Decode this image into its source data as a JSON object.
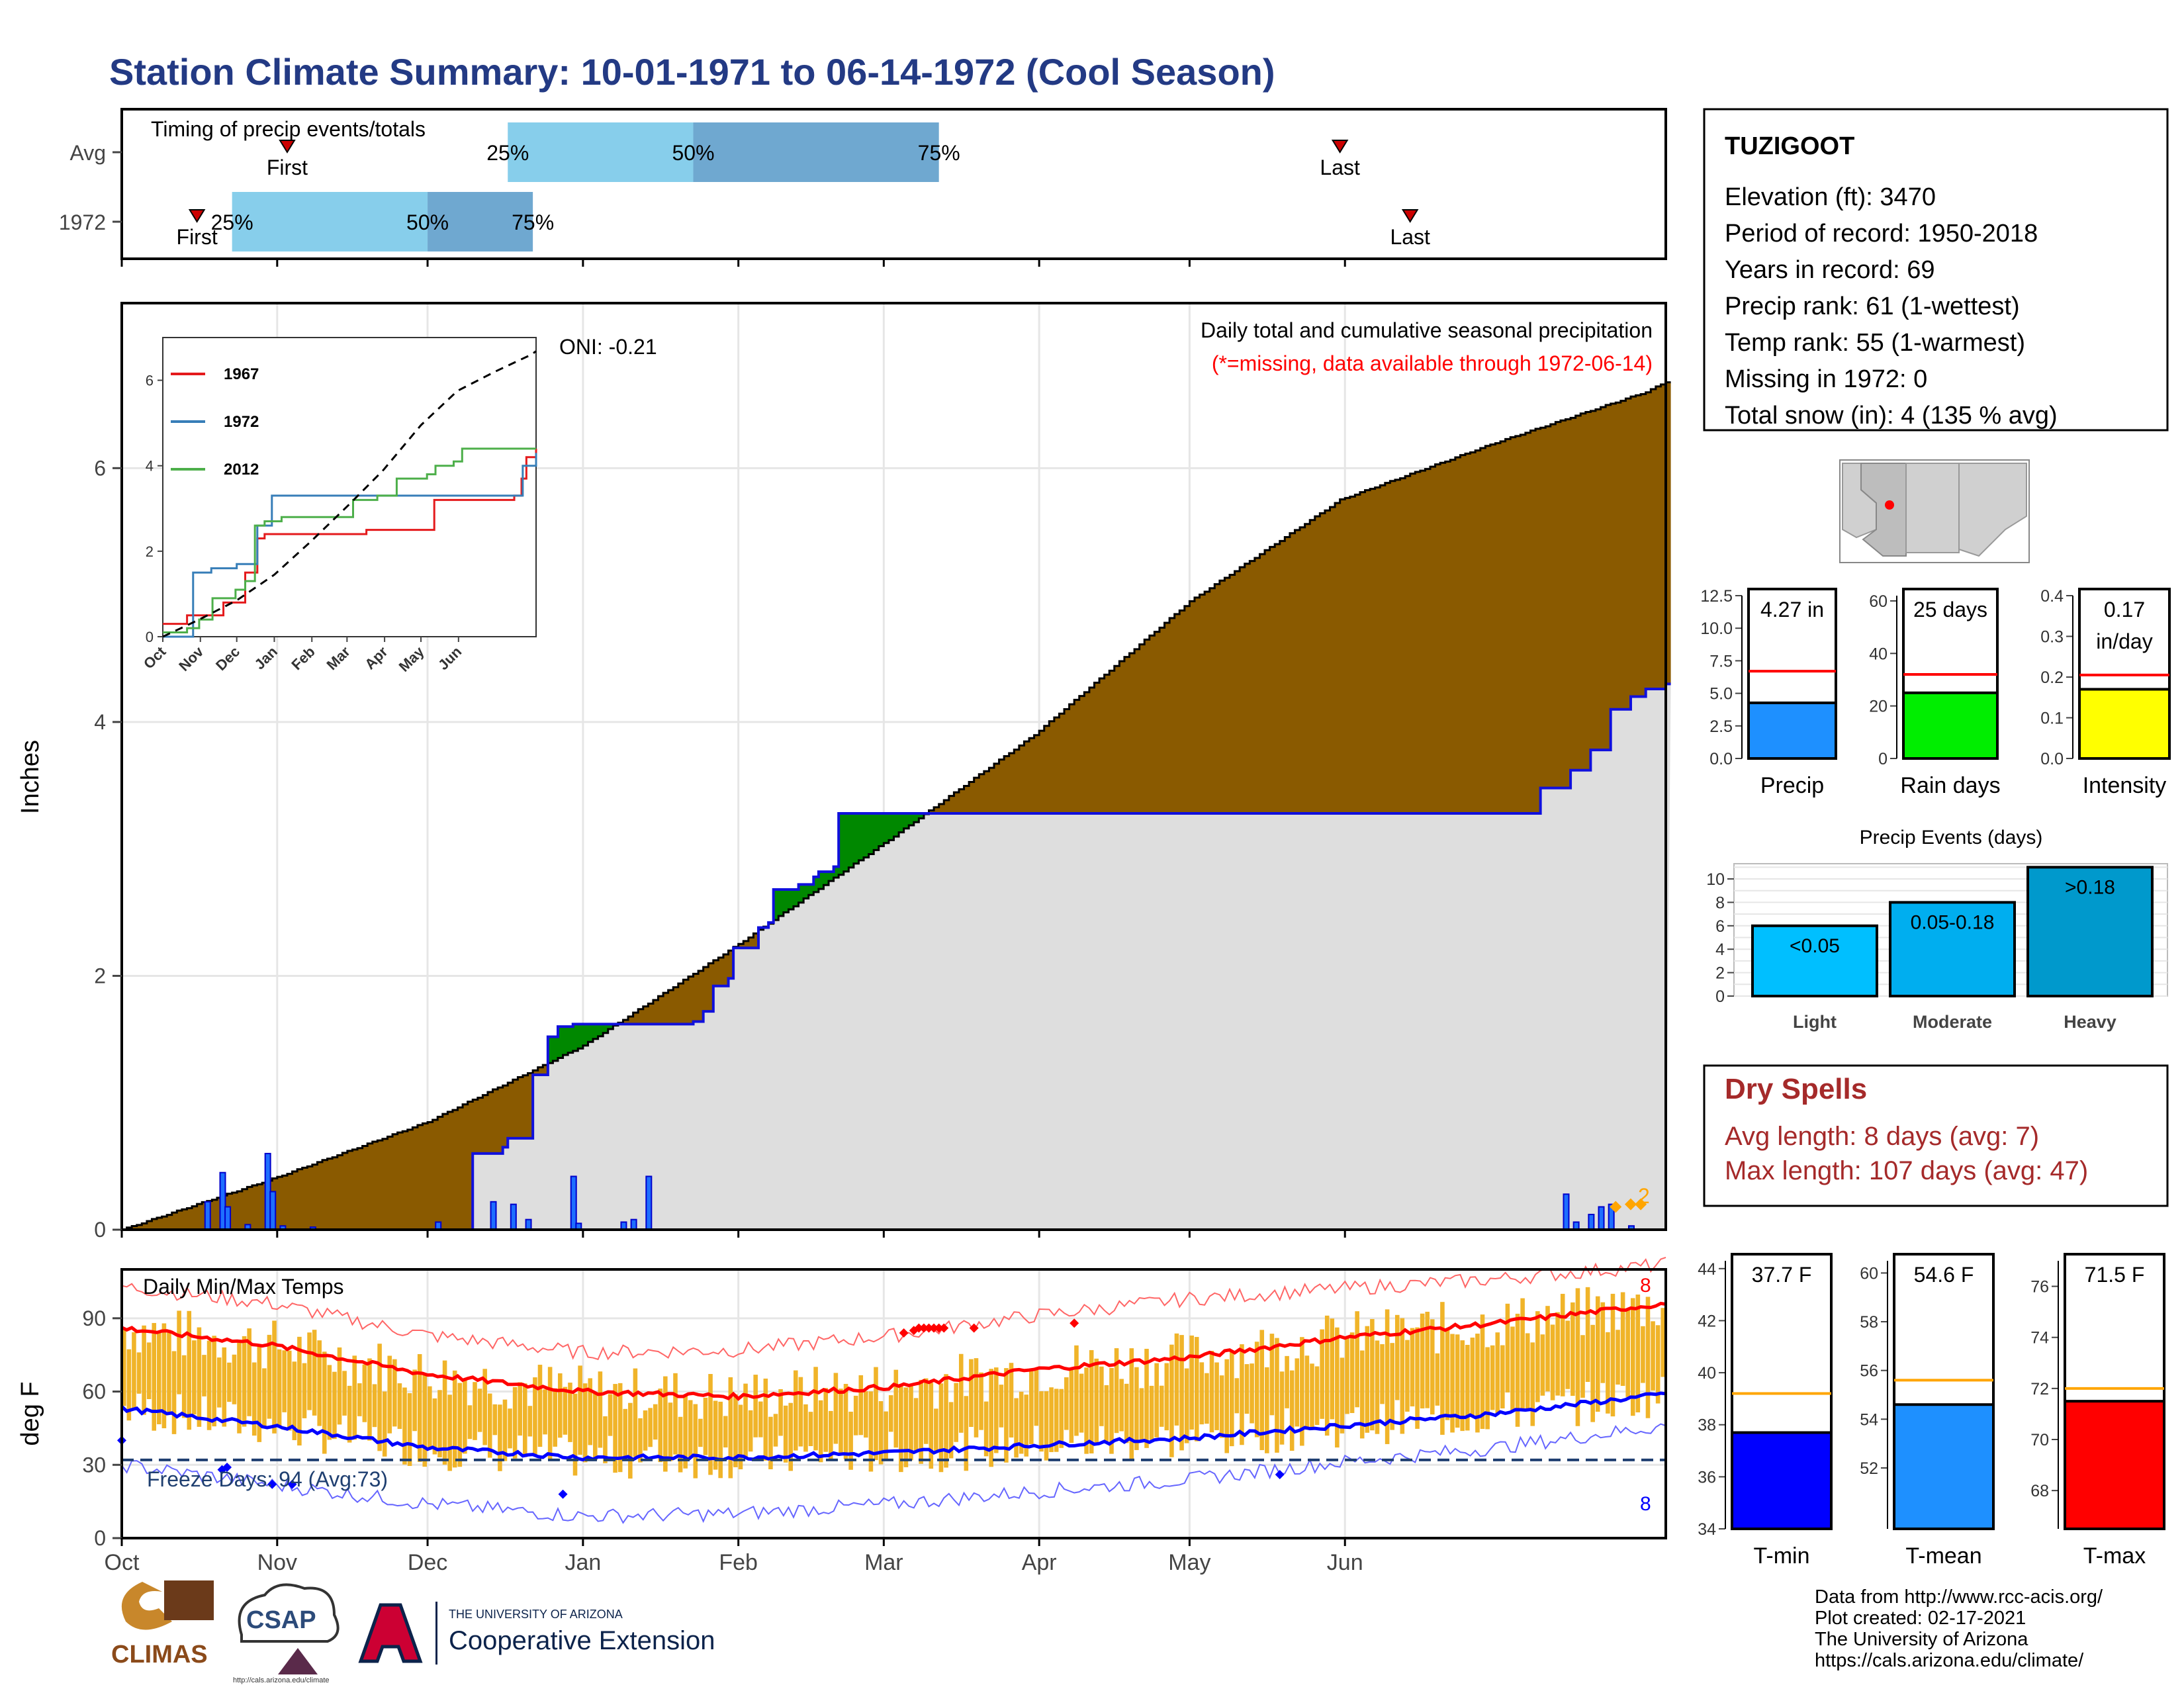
{
  "title": "Station Climate Summary: 10-01-1971 to 06-14-1972 (Cool Season)",
  "timing": {
    "title": "Timing of precip events/totals",
    "rows": [
      {
        "label": "Avg",
        "first_date": "1971-11-03",
        "p25_date": "1971-12-17",
        "p50_date": "1972-01-23",
        "p75_date": "1972-03-12",
        "last_date": "1972-05-31"
      },
      {
        "label": "1972",
        "first_date": "1971-10-16",
        "p25_date": "1971-10-23",
        "p50_date": "1971-12-01",
        "p75_date": "1971-12-22",
        "last_date": "1972-06-14"
      }
    ],
    "first_label": "First",
    "last_label": "Last",
    "pct_labels": [
      "25%",
      "50%",
      "75%"
    ],
    "colors": {
      "light": "#87ceeb",
      "dark": "#6fa8d0",
      "marker": "#cc0000"
    }
  },
  "main_panel": {
    "ylabel": "Inches",
    "oni": "ONI: -0.21",
    "caption": "Daily total and cumulative seasonal precipitation",
    "missing_note": "(*=missing, data available through 1972-06-14)",
    "yticks": [
      "0",
      "2",
      "4",
      "6"
    ],
    "missing_count_label": "2"
  },
  "inset": {
    "yticks": [
      "0",
      "2",
      "4",
      "6"
    ],
    "xticks": [
      "Oct",
      "Nov",
      "Dec",
      "Jan",
      "Feb",
      "Mar",
      "Apr",
      "May",
      "Jun"
    ],
    "legend": [
      {
        "name": "1967",
        "color": "#e41a1c"
      },
      {
        "name": "1972",
        "color": "#377eb8"
      },
      {
        "name": "2012",
        "color": "#4daf4a"
      }
    ]
  },
  "temp_panel": {
    "ylabel": "deg F",
    "title": "Daily Min/Max Temps",
    "freeze_label": "Freeze Days: 94 (Avg:73)",
    "max_count_label": "8",
    "min_count_label": "8",
    "yticks": [
      "0",
      "30",
      "60",
      "90"
    ]
  },
  "x_months": [
    "Oct",
    "Nov",
    "Dec",
    "Jan",
    "Feb",
    "Mar",
    "Apr",
    "May",
    "Jun"
  ],
  "station": {
    "name": "TUZIGOOT",
    "lines": [
      "Elevation (ft): 3470",
      "Period of record: 1950-2018",
      "Years in record: 69",
      "Precip rank: 61 (1-wettest)",
      "Temp rank: 55 (1-warmest)",
      "Missing in 1972: 0",
      "Total snow (in): 4 (135 % avg)"
    ]
  },
  "precip_bars": [
    {
      "name": "Precip",
      "value_label": "4.27 in",
      "value": 4.27,
      "avg": 6.7,
      "ylim": [
        0,
        12.5
      ],
      "yticks": [
        "0.0",
        "2.5",
        "5.0",
        "7.5",
        "10.0",
        "12.5"
      ],
      "color": "#1e90ff"
    },
    {
      "name": "Rain days",
      "value_label": "25 days",
      "value": 25,
      "avg": 32,
      "ylim": [
        0,
        62
      ],
      "yticks": [
        "0",
        "20",
        "40",
        "60"
      ],
      "color": "#00ee00"
    },
    {
      "name": "Intensity",
      "value_label": "0.17\nin/day",
      "value": 0.17,
      "avg": 0.205,
      "ylim": [
        0,
        0.4
      ],
      "yticks": [
        "0.0",
        "0.1",
        "0.2",
        "0.3",
        "0.4"
      ],
      "color": "#ffff00"
    }
  ],
  "precip_events": {
    "title": "Precip Events (days)",
    "yticks": [
      "0",
      "2",
      "4",
      "6",
      "8",
      "10"
    ],
    "bars": [
      {
        "category": "Light",
        "label": "<0.05",
        "value": 6,
        "color": "#00bfff"
      },
      {
        "category": "Moderate",
        "label": "0.05-0.18",
        "value": 8,
        "color": "#00aeef"
      },
      {
        "category": "Heavy",
        "label": ">0.18",
        "value": 11,
        "color": "#0099cc"
      }
    ]
  },
  "dry_spells": {
    "title": "Dry Spells",
    "avg_length": "Avg length: 8 days (avg: 7)",
    "max_length": "Max length: 107 days (avg: 47)",
    "color": "#a52a2a"
  },
  "temp_bars": [
    {
      "name": "T-min",
      "value_label": "37.7 F",
      "value": 37.7,
      "avg": 39.2,
      "ylim": [
        34,
        44.3
      ],
      "yticks": [
        "34",
        "36",
        "38",
        "40",
        "42",
        "44"
      ],
      "color": "#0000ff"
    },
    {
      "name": "T-mean",
      "value_label": "54.6 F",
      "value": 54.6,
      "avg": 55.6,
      "ylim": [
        49.5,
        60.5
      ],
      "yticks": [
        "52",
        "54",
        "56",
        "58",
        "60"
      ],
      "color": "#1e90ff"
    },
    {
      "name": "T-max",
      "value_label": "71.5 F",
      "value": 71.5,
      "avg": 72.0,
      "ylim": [
        66.5,
        77.0
      ],
      "yticks": [
        "68",
        "70",
        "72",
        "74",
        "76"
      ],
      "color": "#ff0000"
    }
  ],
  "credits": [
    "Data from http://www.rcc-acis.org/",
    "Plot created: 02-17-2021",
    "The University of Arizona",
    "https://cals.arizona.edu/climate/"
  ],
  "logos": {
    "climas": "CLIMAS",
    "csap": "CSAP",
    "csap_url": "http://cals.arizona.edu/climate",
    "ua_top": "THE UNIVERSITY OF ARIZONA",
    "ua_bottom": "Cooperative Extension"
  },
  "chart_data": [
    {
      "type": "area",
      "title": "Daily total and cumulative seasonal precipitation",
      "ylabel": "Inches",
      "ylim": [
        0,
        7.3
      ],
      "series": [
        {
          "name": "1972",
          "cumulative": [
            [
              0,
              0
            ],
            [
              68,
              0
            ],
            [
              70,
              0.6
            ],
            [
              76,
              0.65
            ],
            [
              77,
              0.72
            ],
            [
              81,
              0.72
            ],
            [
              82,
              1.22
            ],
            [
              85,
              1.52
            ],
            [
              87,
              1.6
            ],
            [
              90,
              1.62
            ],
            [
              113,
              1.62
            ],
            [
              114,
              1.64
            ],
            [
              116,
              1.72
            ],
            [
              118,
              1.92
            ],
            [
              121,
              1.98
            ],
            [
              122,
              2.22
            ],
            [
              127,
              2.38
            ],
            [
              129,
              2.42
            ],
            [
              130,
              2.68
            ],
            [
              134,
              2.68
            ],
            [
              135,
              2.72
            ],
            [
              138,
              2.78
            ],
            [
              139,
              2.82
            ],
            [
              142,
              2.86
            ],
            [
              143,
              3.28
            ],
            [
              184,
              3.28
            ],
            [
              187,
              3.28
            ],
            [
              245,
              3.28
            ],
            [
              282,
              3.28
            ],
            [
              283,
              3.48
            ],
            [
              289,
              3.62
            ],
            [
              293,
              3.78
            ],
            [
              297,
              4.1
            ],
            [
              301,
              4.2
            ],
            [
              304,
              4.26
            ],
            [
              308,
              4.3
            ]
          ]
        },
        {
          "name": "Average",
          "cumulative": [
            [
              0,
              0
            ],
            [
              30,
              0.4
            ],
            [
              61,
              0.85
            ],
            [
              92,
              1.45
            ],
            [
              123,
              2.25
            ],
            [
              154,
              3.1
            ],
            [
              182,
              3.9
            ],
            [
              213,
              4.95
            ],
            [
              243,
              5.75
            ],
            [
              274,
              6.2
            ],
            [
              304,
              6.6
            ],
            [
              308,
              6.68
            ]
          ]
        }
      ],
      "daily_precip_in": [
        [
          17,
          0.22
        ],
        [
          20,
          0.45
        ],
        [
          21,
          0.18
        ],
        [
          25,
          0.04
        ],
        [
          29,
          0.6
        ],
        [
          30,
          0.3
        ],
        [
          32,
          0.03
        ],
        [
          38,
          0.02
        ],
        [
          63,
          0.06
        ],
        [
          74,
          0.22
        ],
        [
          78,
          0.2
        ],
        [
          81,
          0.08
        ],
        [
          90,
          0.42
        ],
        [
          91,
          0.05
        ],
        [
          100,
          0.06
        ],
        [
          102,
          0.08
        ],
        [
          105,
          0.42
        ],
        [
          288,
          0.28
        ],
        [
          290,
          0.06
        ],
        [
          293,
          0.12
        ],
        [
          295,
          0.18
        ],
        [
          297,
          0.2
        ],
        [
          301,
          0.03
        ]
      ]
    },
    {
      "type": "line",
      "title": "Daily Min/Max Temps",
      "ylabel": "deg F",
      "ylim": [
        0,
        110
      ],
      "series": [
        {
          "name": "Avg max",
          "points": [
            [
              0,
              86
            ],
            [
              30,
              79
            ],
            [
              61,
              67
            ],
            [
              92,
              60
            ],
            [
              123,
              58
            ],
            [
              154,
              62
            ],
            [
              182,
              69
            ],
            [
              213,
              74
            ],
            [
              243,
              82
            ],
            [
              274,
              88
            ],
            [
              308,
              96
            ]
          ]
        },
        {
          "name": "Avg min",
          "points": [
            [
              0,
              53
            ],
            [
              30,
              46
            ],
            [
              61,
              37
            ],
            [
              92,
              33
            ],
            [
              123,
              33
            ],
            [
              154,
              35
            ],
            [
              182,
              38
            ],
            [
              213,
              41
            ],
            [
              243,
              46
            ],
            [
              274,
              51
            ],
            [
              308,
              59
            ]
          ]
        },
        {
          "name": "Record max",
          "points": [
            [
              0,
              103
            ],
            [
              30,
              96
            ],
            [
              61,
              83
            ],
            [
              92,
              76
            ],
            [
              123,
              77
            ],
            [
              154,
              83
            ],
            [
              182,
              91
            ],
            [
              213,
              98
            ],
            [
              243,
              102
            ],
            [
              274,
              106
            ],
            [
              308,
              112
            ]
          ]
        },
        {
          "name": "Record min",
          "points": [
            [
              0,
              30
            ],
            [
              30,
              22
            ],
            [
              61,
              14
            ],
            [
              92,
              9
            ],
            [
              123,
              10
            ],
            [
              154,
              14
            ],
            [
              182,
              19
            ],
            [
              213,
              24
            ],
            [
              243,
              31
            ],
            [
              274,
              37
            ],
            [
              308,
              46
            ]
          ]
        },
        {
          "name": "Freeze",
          "points": [
            [
              0,
              32
            ],
            [
              308,
              32
            ]
          ]
        }
      ]
    }
  ]
}
